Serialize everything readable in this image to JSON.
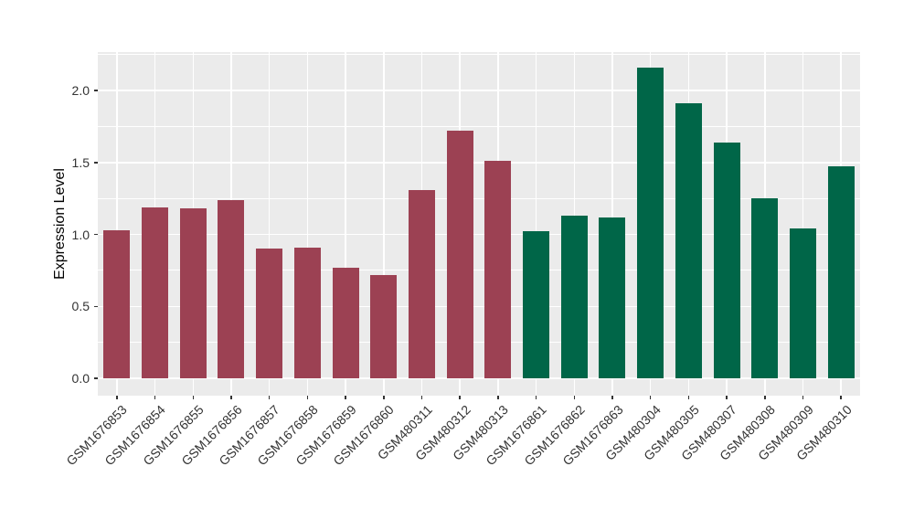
{
  "chart_data": {
    "type": "bar",
    "title": "",
    "xlabel": "",
    "ylabel": "Expression Level",
    "categories": [
      "GSM1676853",
      "GSM1676854",
      "GSM1676855",
      "GSM1676856",
      "GSM1676857",
      "GSM1676858",
      "GSM1676859",
      "GSM1676860",
      "GSM480311",
      "GSM480312",
      "GSM480313",
      "GSM1676861",
      "GSM1676862",
      "GSM1676863",
      "GSM480304",
      "GSM480305",
      "GSM480307",
      "GSM480308",
      "GSM480309",
      "GSM480310"
    ],
    "values": [
      1.03,
      1.19,
      1.18,
      1.24,
      0.9,
      0.91,
      0.77,
      0.72,
      1.31,
      1.72,
      1.51,
      1.02,
      1.13,
      1.12,
      2.16,
      1.91,
      1.64,
      1.25,
      1.04,
      1.47
    ],
    "bar_colors": [
      "#9C4153",
      "#9C4153",
      "#9C4153",
      "#9C4153",
      "#9C4153",
      "#9C4153",
      "#9C4153",
      "#9C4153",
      "#9C4153",
      "#9C4153",
      "#9C4153",
      "#006648",
      "#006648",
      "#006648",
      "#006648",
      "#006648",
      "#006648",
      "#006648",
      "#006648",
      "#006648"
    ],
    "group_colors": {
      "group1": "#9C4153",
      "group2": "#006648"
    },
    "ytick_labels": [
      "0.0",
      "0.5",
      "1.0",
      "1.5",
      "2.0"
    ],
    "ytick_values": [
      0,
      0.5,
      1.0,
      1.5,
      2.0
    ],
    "yminor_values": [
      0.25,
      0.75,
      1.25,
      1.75,
      2.25
    ],
    "ylim": [
      -0.12,
      2.27
    ],
    "grid": "on",
    "legend_position": "none",
    "panel_background": "#EBEBEB",
    "gridline_color": "#FFFFFF",
    "axis_text_color": "#333333"
  }
}
